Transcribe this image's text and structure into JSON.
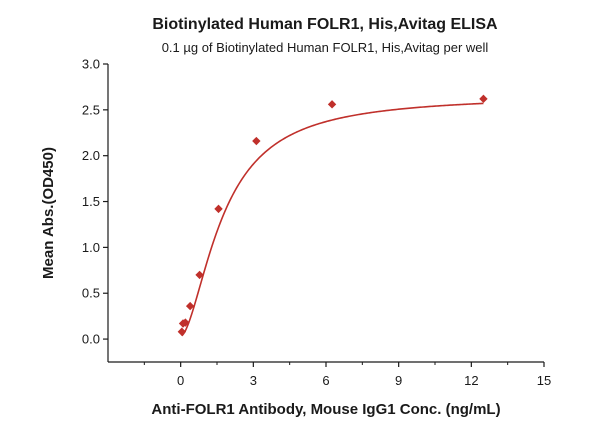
{
  "chart_data": {
    "type": "scatter",
    "title": "Biotinylated Human FOLR1, His,Avitag ELISA",
    "subtitle": "0.1 µg of Biotinylated Human FOLR1, His,Avitag per well",
    "xlabel": "Anti-FOLR1 Antibody, Mouse IgG1 Conc. (ng/mL)",
    "ylabel": "Mean Abs.(OD450)",
    "xlim": [
      -3,
      15
    ],
    "ylim": [
      -0.25,
      3.0
    ],
    "xticks": [
      0,
      3,
      6,
      9,
      12,
      15
    ],
    "yticks": [
      0.0,
      0.5,
      1.0,
      1.5,
      2.0,
      2.5,
      3.0
    ],
    "ytick_labels": [
      "0.0",
      "0.5",
      "1.0",
      "1.5",
      "2.0",
      "2.5",
      "3.0"
    ],
    "grid": false,
    "color": "#c0302b",
    "series": [
      {
        "x": [
          0.049,
          0.098,
          0.195,
          0.391,
          0.781,
          1.563,
          3.125,
          6.25,
          12.5
        ],
        "y": [
          0.08,
          0.17,
          0.18,
          0.36,
          0.7,
          1.42,
          2.16,
          2.56,
          2.62
        ]
      }
    ],
    "fit": {
      "model": "4PL",
      "bottom": 0.03,
      "top": 2.66,
      "ec50": 1.75,
      "hill": 1.7
    }
  }
}
